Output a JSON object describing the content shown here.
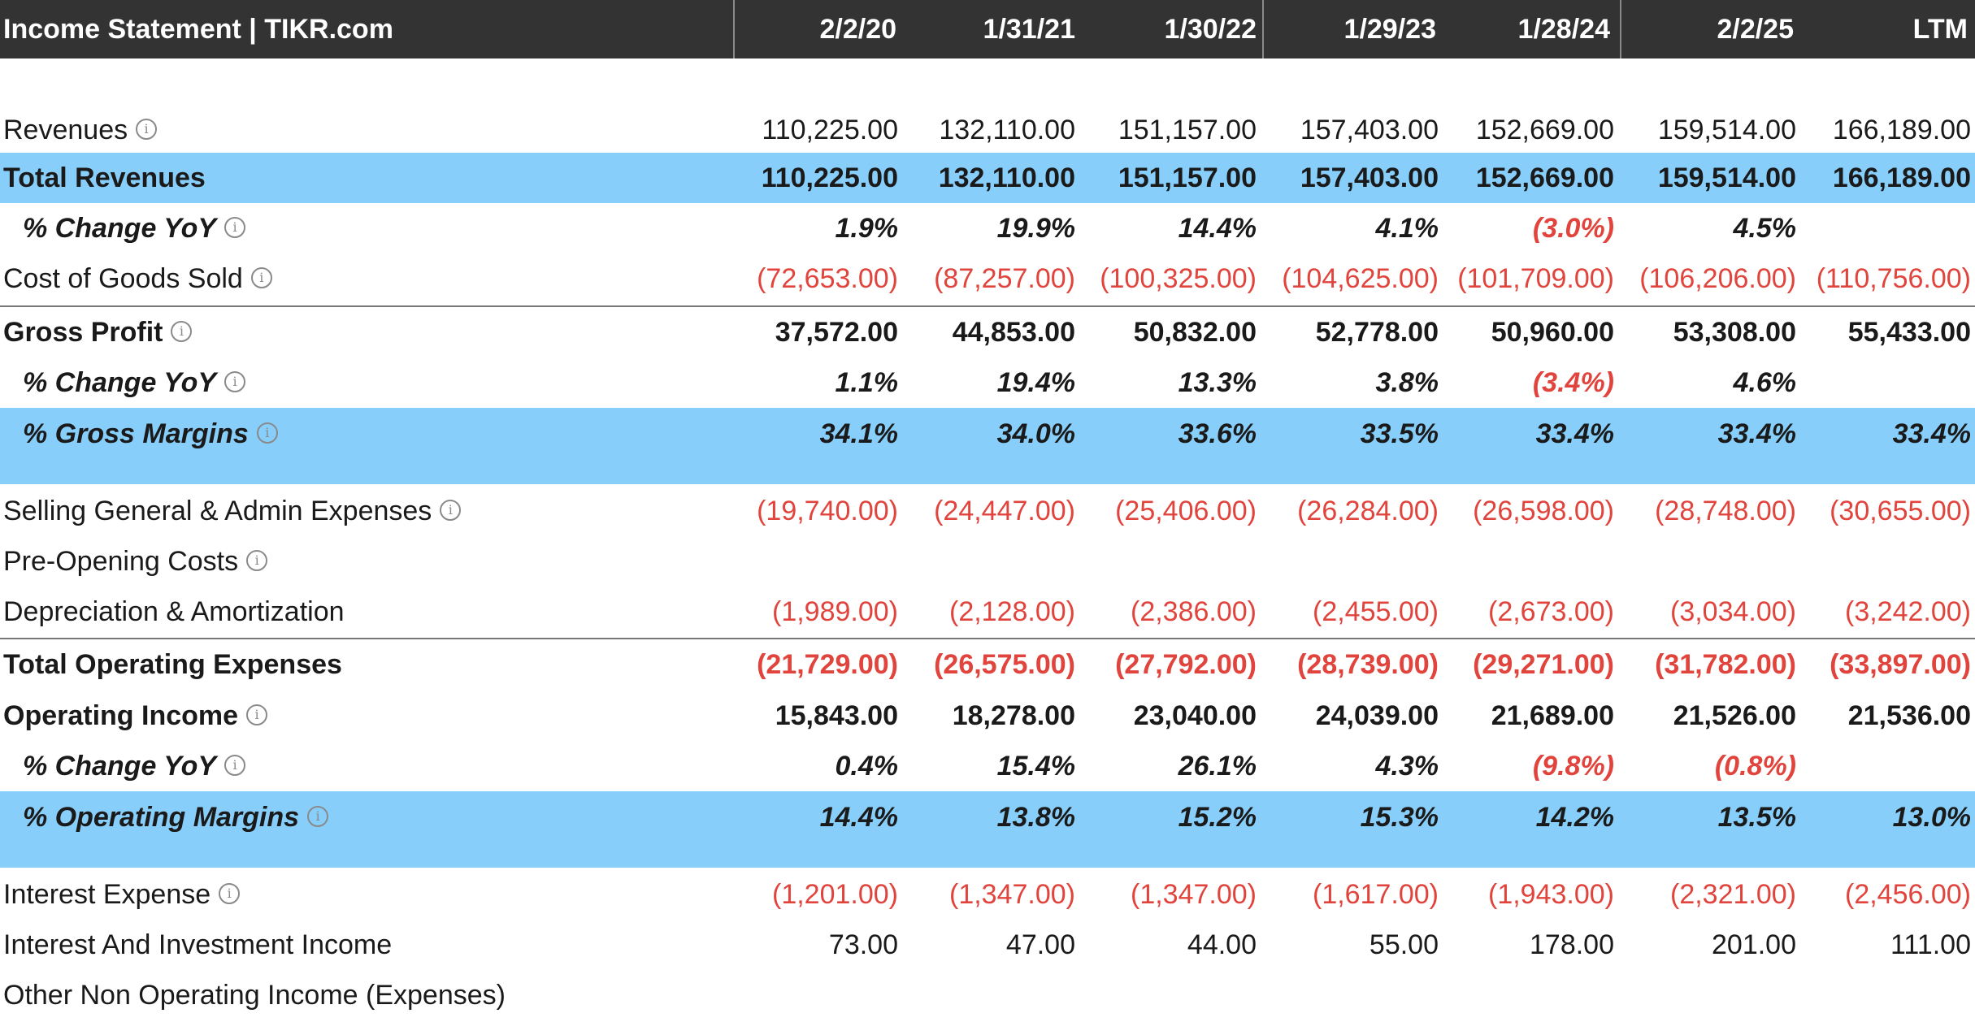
{
  "header": {
    "title": "Income Statement | TIKR.com",
    "dates": [
      "2/2/20",
      "1/31/21",
      "1/30/22",
      "1/29/23",
      "1/28/24",
      "2/2/25",
      "LTM"
    ]
  },
  "rows": [
    {
      "label": "Revenues",
      "info": true,
      "values": [
        "110,225.00",
        "132,110.00",
        "151,157.00",
        "157,403.00",
        "152,669.00",
        "159,514.00",
        "166,189.00"
      ]
    },
    {
      "label": "Total Revenues",
      "values": [
        "110,225.00",
        "132,110.00",
        "151,157.00",
        "157,403.00",
        "152,669.00",
        "159,514.00",
        "166,189.00"
      ]
    },
    {
      "label": "% Change YoY",
      "info": true,
      "values": [
        "1.9%",
        "19.9%",
        "14.4%",
        "4.1%",
        "(3.0%)",
        "4.5%",
        ""
      ]
    },
    {
      "label": "Cost of Goods Sold",
      "info": true,
      "values": [
        "(72,653.00)",
        "(87,257.00)",
        "(100,325.00)",
        "(104,625.00)",
        "(101,709.00)",
        "(106,206.00)",
        "(110,756.00)"
      ]
    },
    {
      "label": "Gross Profit",
      "info": true,
      "values": [
        "37,572.00",
        "44,853.00",
        "50,832.00",
        "52,778.00",
        "50,960.00",
        "53,308.00",
        "55,433.00"
      ]
    },
    {
      "label": "% Change YoY",
      "info": true,
      "values": [
        "1.1%",
        "19.4%",
        "13.3%",
        "3.8%",
        "(3.4%)",
        "4.6%",
        ""
      ]
    },
    {
      "label": "% Gross Margins",
      "info": true,
      "values": [
        "34.1%",
        "34.0%",
        "33.6%",
        "33.5%",
        "33.4%",
        "33.4%",
        "33.4%"
      ]
    },
    {
      "label": "Selling General & Admin Expenses",
      "info": true,
      "values": [
        "(19,740.00)",
        "(24,447.00)",
        "(25,406.00)",
        "(26,284.00)",
        "(26,598.00)",
        "(28,748.00)",
        "(30,655.00)"
      ]
    },
    {
      "label": "Pre-Opening Costs",
      "info": true,
      "values": [
        "",
        "",
        "",
        "",
        "",
        "",
        ""
      ]
    },
    {
      "label": "Depreciation & Amortization",
      "values": [
        "(1,989.00)",
        "(2,128.00)",
        "(2,386.00)",
        "(2,455.00)",
        "(2,673.00)",
        "(3,034.00)",
        "(3,242.00)"
      ]
    },
    {
      "label": "Total Operating Expenses",
      "values": [
        "(21,729.00)",
        "(26,575.00)",
        "(27,792.00)",
        "(28,739.00)",
        "(29,271.00)",
        "(31,782.00)",
        "(33,897.00)"
      ]
    },
    {
      "label": "Operating Income",
      "info": true,
      "values": [
        "15,843.00",
        "18,278.00",
        "23,040.00",
        "24,039.00",
        "21,689.00",
        "21,526.00",
        "21,536.00"
      ]
    },
    {
      "label": "% Change YoY",
      "info": true,
      "values": [
        "0.4%",
        "15.4%",
        "26.1%",
        "4.3%",
        "(9.8%)",
        "(0.8%)",
        ""
      ]
    },
    {
      "label": "% Operating Margins",
      "info": true,
      "values": [
        "14.4%",
        "13.8%",
        "15.2%",
        "15.3%",
        "14.2%",
        "13.5%",
        "13.0%"
      ]
    },
    {
      "label": "Interest Expense",
      "info": true,
      "values": [
        "(1,201.00)",
        "(1,347.00)",
        "(1,347.00)",
        "(1,617.00)",
        "(1,943.00)",
        "(2,321.00)",
        "(2,456.00)"
      ]
    },
    {
      "label": "Interest And Investment Income",
      "values": [
        "73.00",
        "47.00",
        "44.00",
        "55.00",
        "178.00",
        "201.00",
        "111.00"
      ]
    },
    {
      "label": "Other Non Operating Income (Expenses)",
      "values": [
        "",
        "",
        "",
        "",
        "",
        "",
        ""
      ]
    }
  ],
  "colors": {
    "header_bg": "#333333",
    "highlight": "#87cefa",
    "negative": "#e0443c"
  }
}
